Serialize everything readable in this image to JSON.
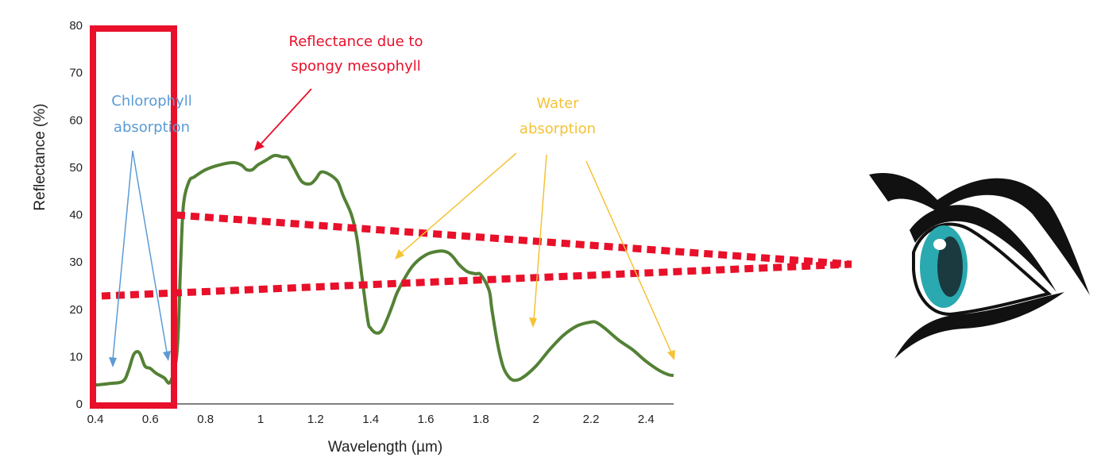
{
  "chart_data": {
    "type": "line",
    "title": "",
    "xlabel": "Wavelength (µm)",
    "ylabel": "Reflectance (%)",
    "xlim": [
      0.4,
      2.5
    ],
    "ylim": [
      0,
      80
    ],
    "x_ticks": [
      "0.4",
      "0.6",
      "0.8",
      "1",
      "1.2",
      "1.4",
      "1.6",
      "1.8",
      "2",
      "2.2",
      "2.4"
    ],
    "y_ticks": [
      "0",
      "10",
      "20",
      "30",
      "40",
      "50",
      "60",
      "70",
      "80"
    ],
    "grid": false,
    "legend": "none",
    "series": [
      {
        "color": "#538135",
        "x": [
          0.4,
          0.45,
          0.5,
          0.52,
          0.54,
          0.56,
          0.58,
          0.6,
          0.62,
          0.65,
          0.67,
          0.69,
          0.7,
          0.71,
          0.72,
          0.74,
          0.76,
          0.8,
          0.85,
          0.9,
          0.93,
          0.95,
          0.97,
          0.99,
          1.02,
          1.05,
          1.08,
          1.1,
          1.12,
          1.15,
          1.18,
          1.2,
          1.22,
          1.25,
          1.28,
          1.3,
          1.33,
          1.35,
          1.37,
          1.39,
          1.4,
          1.42,
          1.44,
          1.46,
          1.48,
          1.5,
          1.55,
          1.6,
          1.65,
          1.68,
          1.7,
          1.72,
          1.75,
          1.78,
          1.8,
          1.83,
          1.84,
          1.86,
          1.88,
          1.9,
          1.92,
          1.95,
          2.0,
          2.05,
          2.1,
          2.15,
          2.2,
          2.22,
          2.25,
          2.3,
          2.35,
          2.4,
          2.45,
          2.48,
          2.5
        ],
        "y": [
          4,
          4.3,
          4.8,
          7,
          10.5,
          10.8,
          8,
          7.5,
          6.5,
          5.5,
          4.5,
          8,
          14,
          30,
          42,
          47,
          48,
          49.5,
          50.5,
          51,
          50.5,
          49.5,
          49.5,
          50.5,
          51.5,
          52.5,
          52.2,
          52,
          50,
          47,
          46.5,
          47.5,
          49,
          48.5,
          47,
          44,
          40,
          35,
          26,
          17.5,
          16,
          15,
          15.5,
          18,
          21,
          24,
          29,
          31.5,
          32.3,
          32,
          31,
          29.5,
          28,
          27.5,
          27.3,
          24,
          20,
          13,
          8,
          5.8,
          5,
          5.5,
          8,
          11.5,
          14.5,
          16.5,
          17.3,
          17.2,
          16,
          13.5,
          11.5,
          9,
          7,
          6.2,
          6
        ]
      }
    ],
    "annotations": {
      "chlorophyll": {
        "lines": [
          "Chlorophyll",
          "absorption"
        ],
        "color": "#5b9bd5"
      },
      "spongy": {
        "lines": [
          "Reflectance due to",
          "spongy mesophyll"
        ],
        "color": "#e8102a"
      },
      "water": {
        "lines": [
          "Water",
          "absorption"
        ],
        "color": "#f5c235"
      }
    },
    "colors": {
      "highlight_box": "#e8102a",
      "dotted_lines": "#e8102a",
      "eye_iris": "#2aa9b0"
    },
    "icons": [
      "eye-icon"
    ]
  }
}
